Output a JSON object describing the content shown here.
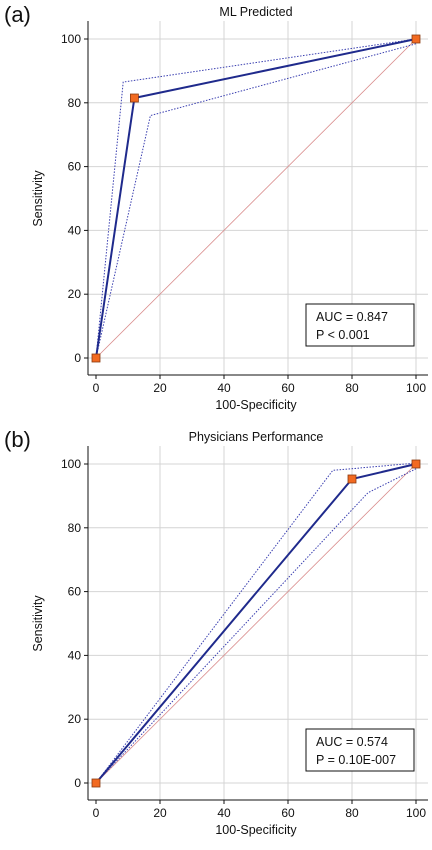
{
  "panels": [
    {
      "letter": "(a)"
    },
    {
      "letter": "(b)"
    }
  ],
  "colors": {
    "roc_line": "#1f2a8c",
    "ci_line": "#3a3fb0",
    "diagonal": "#d98c8c",
    "marker_fill": "#f26a21",
    "marker_stroke": "#8a3a10",
    "grid": "#d4d4d4"
  },
  "chart_data": [
    {
      "type": "line",
      "title": "ML Predicted",
      "xlabel": "100-Specificity",
      "ylabel": "Sensitivity",
      "xlim": [
        0,
        100
      ],
      "ylim": [
        0,
        100
      ],
      "xticks": [
        0,
        20,
        40,
        60,
        80,
        100
      ],
      "yticks": [
        0,
        20,
        40,
        60,
        80,
        100
      ],
      "grid": true,
      "series": [
        {
          "role": "roc",
          "x": [
            0,
            12,
            100
          ],
          "y": [
            0,
            81.5,
            100
          ],
          "markers": true
        },
        {
          "role": "ci-upper",
          "x": [
            0,
            8.5,
            100
          ],
          "y": [
            0,
            86.5,
            100
          ]
        },
        {
          "role": "ci-lower",
          "x": [
            0,
            17,
            100
          ],
          "y": [
            0,
            76,
            98.5
          ]
        },
        {
          "role": "reference",
          "x": [
            0,
            100
          ],
          "y": [
            0,
            100
          ]
        }
      ],
      "annotation": {
        "auc": "AUC = 0.847",
        "p": "P < 0.001"
      }
    },
    {
      "type": "line",
      "title": "Physicians Performance",
      "xlabel": "100-Specificity",
      "ylabel": "Sensitivity",
      "xlim": [
        0,
        100
      ],
      "ylim": [
        0,
        100
      ],
      "xticks": [
        0,
        20,
        40,
        60,
        80,
        100
      ],
      "yticks": [
        0,
        20,
        40,
        60,
        80,
        100
      ],
      "grid": true,
      "series": [
        {
          "role": "roc",
          "x": [
            0,
            80,
            100
          ],
          "y": [
            0,
            95.3,
            100
          ],
          "markers": true
        },
        {
          "role": "ci-upper",
          "x": [
            0,
            74,
            100
          ],
          "y": [
            0,
            98,
            100.3
          ]
        },
        {
          "role": "ci-lower",
          "x": [
            0,
            85,
            100
          ],
          "y": [
            0,
            91,
            98.5
          ]
        },
        {
          "role": "reference",
          "x": [
            0,
            100
          ],
          "y": [
            0,
            100
          ]
        }
      ],
      "annotation": {
        "auc": "AUC = 0.574",
        "p": "P = 0.10E-007"
      }
    }
  ]
}
